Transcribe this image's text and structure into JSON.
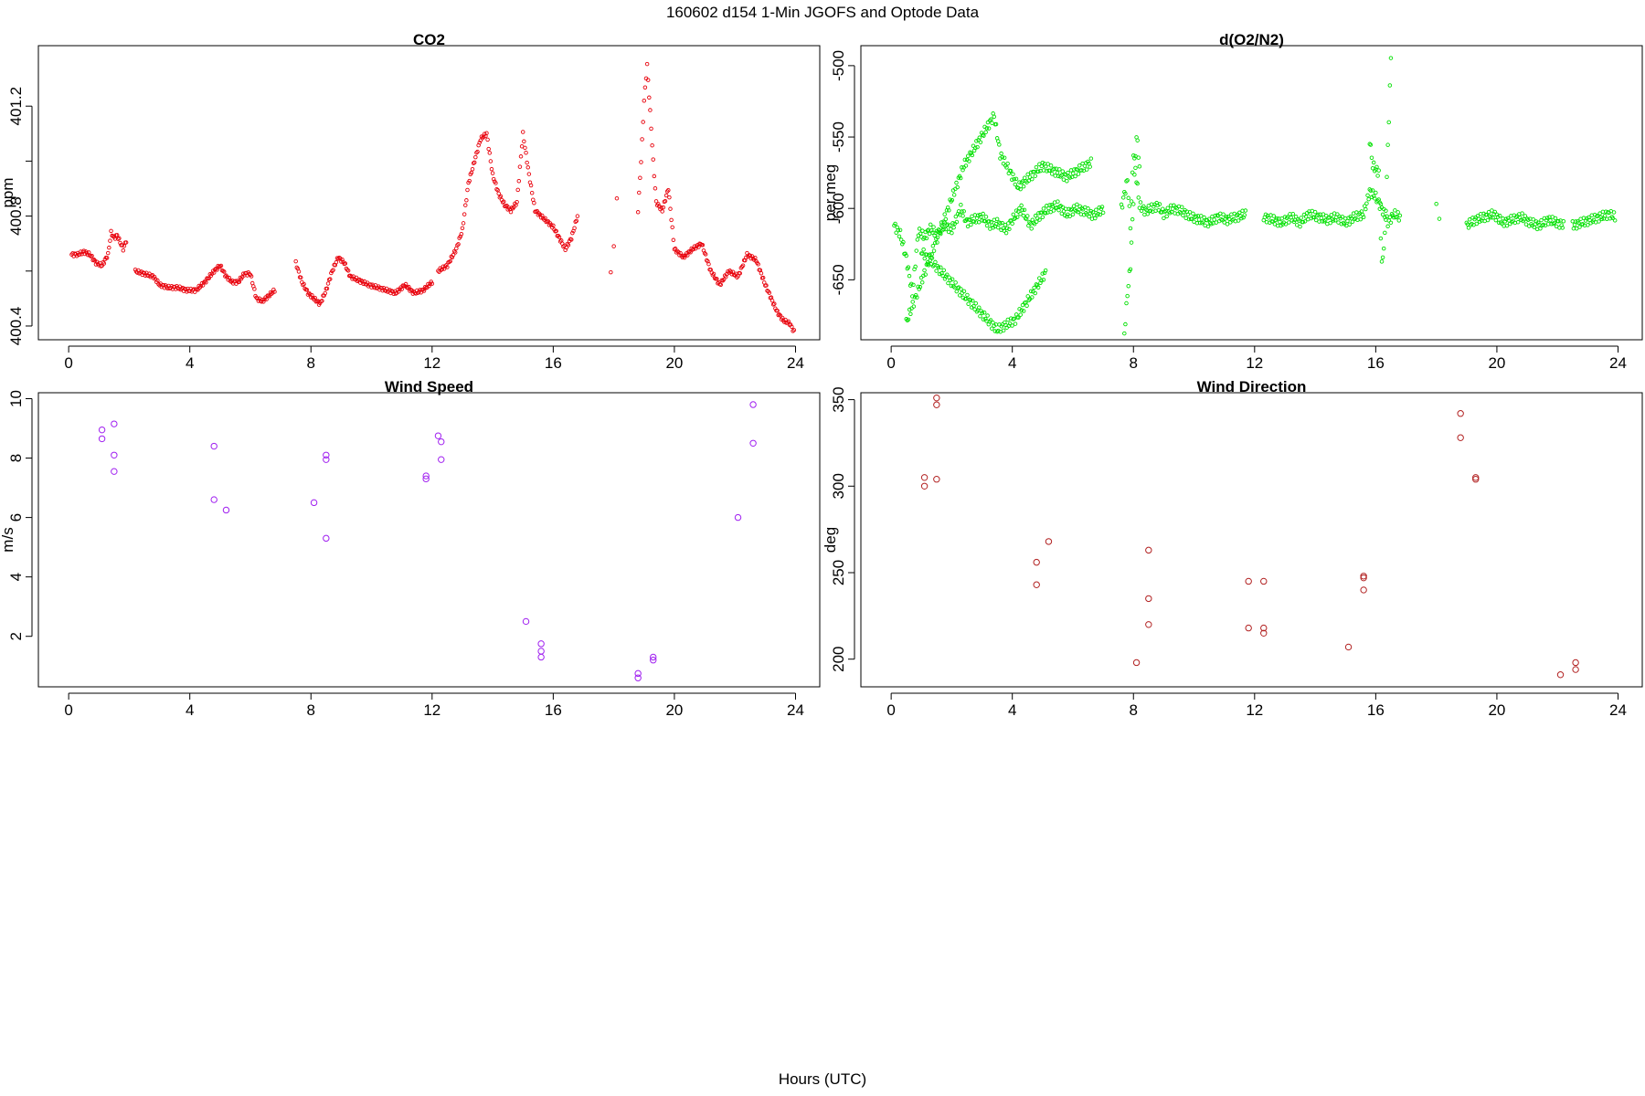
{
  "figure": {
    "title": "160602   d154   1-Min  JGOFS and Optode Data",
    "xlabel": "Hours (UTC)"
  },
  "chart_data": [
    {
      "type": "scatter",
      "title": "CO2",
      "xlabel": "",
      "ylabel": "ppm",
      "xlim": [
        -1,
        24.8
      ],
      "ylim": [
        400.35,
        401.42
      ],
      "xticks": [
        0,
        4,
        8,
        12,
        16,
        20,
        24
      ],
      "yticks": [
        400.4,
        400.6,
        400.8,
        401.0,
        401.2
      ],
      "ytick_labels": [
        "400.4",
        "",
        "400.8",
        "",
        "401.2"
      ],
      "color": "#e8000b",
      "marker": "small-circle",
      "series_note": "1-minute samples; values sampled along the visible trace",
      "segments": [
        {
          "x": [
            0.1,
            0.3,
            0.5,
            0.7,
            0.9,
            1.1,
            1.3,
            1.4,
            1.5,
            1.6,
            1.8,
            1.9
          ],
          "y": [
            400.66,
            400.66,
            400.67,
            400.66,
            400.63,
            400.62,
            400.66,
            400.74,
            400.72,
            400.73,
            400.68,
            400.71
          ]
        },
        {
          "x": [
            2.2,
            2.5,
            2.8,
            3.0,
            3.3,
            3.6,
            3.9,
            4.2,
            4.5,
            4.8,
            5.0,
            5.2,
            5.4,
            5.6,
            5.8,
            6.0,
            6.2,
            6.4,
            6.6,
            6.8
          ],
          "y": [
            400.6,
            400.59,
            400.58,
            400.55,
            400.54,
            400.54,
            400.53,
            400.53,
            400.56,
            400.6,
            400.62,
            400.58,
            400.56,
            400.56,
            400.59,
            400.59,
            400.5,
            400.49,
            400.51,
            400.53
          ]
        },
        {
          "x": [
            7.5,
            7.7,
            7.9,
            8.1,
            8.3,
            8.5,
            8.7,
            8.9,
            9.1,
            9.3,
            9.5,
            9.7,
            9.9,
            10.2,
            10.5,
            10.8,
            11.1,
            11.4,
            11.7,
            12.0
          ],
          "y": [
            400.63,
            400.56,
            400.52,
            400.5,
            400.48,
            400.53,
            400.6,
            400.65,
            400.63,
            400.58,
            400.57,
            400.56,
            400.55,
            400.54,
            400.53,
            400.52,
            400.55,
            400.52,
            400.53,
            400.56
          ]
        },
        {
          "x": [
            12.2,
            12.5,
            12.8,
            13.0,
            13.2,
            13.4,
            13.6,
            13.8,
            14.0,
            14.2,
            14.4,
            14.6,
            14.8,
            15.0,
            15.2,
            15.4,
            15.6,
            15.8,
            16.0,
            16.2,
            16.4,
            16.6,
            16.8
          ],
          "y": [
            400.6,
            400.62,
            400.68,
            400.75,
            400.92,
            401.0,
            401.08,
            401.1,
            400.95,
            400.88,
            400.84,
            400.82,
            400.85,
            401.1,
            400.95,
            400.82,
            400.8,
            400.78,
            400.76,
            400.72,
            400.68,
            400.72,
            400.8
          ]
        },
        {
          "x": [
            17.9,
            18.0,
            18.1
          ],
          "y": [
            400.6,
            400.69,
            400.86
          ]
        },
        {
          "x": [
            18.8,
            18.9,
            19.0,
            19.1,
            19.2,
            19.3,
            19.4,
            19.6,
            19.8,
            20.0,
            20.3,
            20.6,
            20.9,
            21.2,
            21.5,
            21.8,
            22.1,
            22.4,
            22.7,
            23.0,
            23.2,
            23.4,
            23.6,
            23.8,
            23.95
          ],
          "y": [
            400.82,
            401.0,
            401.22,
            401.35,
            401.18,
            401.0,
            400.85,
            400.82,
            400.9,
            400.68,
            400.65,
            400.68,
            400.7,
            400.6,
            400.55,
            400.6,
            400.58,
            400.66,
            400.64,
            400.55,
            400.5,
            400.45,
            400.42,
            400.41,
            400.38
          ]
        }
      ]
    },
    {
      "type": "scatter",
      "title": "d(O2/N2)",
      "xlabel": "",
      "ylabel": "per meg",
      "xlim": [
        -1,
        24.8
      ],
      "ylim": [
        -692,
        -486
      ],
      "xticks": [
        0,
        4,
        8,
        12,
        16,
        20,
        24
      ],
      "yticks": [
        -500,
        -550,
        -600,
        -650
      ],
      "ytick_labels": [
        "-500",
        "-550",
        "-600",
        "-650"
      ],
      "color": "#00e000",
      "marker": "small-circle",
      "series_note": "1-minute samples; values sampled along the visible trace",
      "segments": [
        {
          "x": [
            0.1,
            0.3,
            0.5,
            0.7,
            0.9,
            1.1,
            1.3,
            1.5,
            1.8,
            2.0,
            2.3,
            2.5,
            2.7,
            3.0,
            3.3,
            3.5,
            3.8,
            4.0,
            4.3,
            4.6,
            4.9,
            5.2,
            5.5,
            5.8,
            6.1,
            6.4,
            6.7,
            7.0
          ],
          "y": [
            -612,
            -618,
            -635,
            -660,
            -616,
            -620,
            -614,
            -618,
            -612,
            -615,
            -600,
            -610,
            -608,
            -606,
            -612,
            -610,
            -615,
            -608,
            -600,
            -612,
            -605,
            -600,
            -598,
            -604,
            -600,
            -602,
            -605,
            -600
          ]
        },
        {
          "x": [
            0.5,
            2.4,
            3.4,
            3.6,
            4.2,
            5.0,
            5.8,
            6.6,
            1.0,
            3.5,
            4.1,
            5.1
          ],
          "y": [
            -680,
            -570,
            -535,
            -562,
            -585,
            -570,
            -578,
            -568,
            -630,
            -685,
            -678,
            -645
          ]
        },
        {
          "x": [
            7.6,
            7.8,
            7.9,
            8.0,
            8.2,
            8.4,
            8.6,
            8.8,
            9.0,
            9.3,
            9.6,
            9.9,
            10.2,
            10.5,
            10.8,
            11.1,
            11.4,
            11.7
          ],
          "y": [
            -600,
            -580,
            -612,
            -560,
            -598,
            -602,
            -600,
            -598,
            -604,
            -600,
            -602,
            -606,
            -608,
            -610,
            -606,
            -608,
            -606,
            -604
          ]
        },
        {
          "x": [
            7.7,
            7.8,
            7.9,
            8.1,
            8.2
          ],
          "y": [
            -688,
            -660,
            -640,
            -548,
            -570
          ]
        },
        {
          "x": [
            12.3,
            12.6,
            12.9,
            13.2,
            13.5,
            13.8,
            14.1,
            14.4,
            14.7,
            15.0,
            15.3,
            15.6,
            15.8,
            16.0,
            16.2,
            16.4,
            16.6,
            16.8
          ],
          "y": [
            -606,
            -608,
            -610,
            -606,
            -610,
            -604,
            -606,
            -608,
            -606,
            -610,
            -606,
            -604,
            -588,
            -592,
            -600,
            -610,
            -604,
            -606
          ]
        },
        {
          "x": [
            15.8,
            15.9,
            16.1,
            16.2,
            16.3,
            16.5
          ],
          "y": [
            -552,
            -570,
            -575,
            -640,
            -620,
            -495
          ]
        },
        {
          "x": [
            18.0,
            18.1
          ],
          "y": [
            -596,
            -610
          ]
        },
        {
          "x": [
            19.0,
            19.3,
            19.6,
            19.9,
            20.2,
            20.5,
            20.8,
            21.1,
            21.4,
            21.7,
            22.0,
            22.2
          ],
          "y": [
            -612,
            -608,
            -606,
            -604,
            -610,
            -608,
            -606,
            -610,
            -612,
            -608,
            -610,
            -612
          ]
        },
        {
          "x": [
            22.5,
            22.8,
            23.1,
            23.4,
            23.7,
            23.9
          ],
          "y": [
            -612,
            -610,
            -608,
            -606,
            -604,
            -606
          ]
        }
      ]
    },
    {
      "type": "scatter",
      "title": "Wind Speed",
      "xlabel": "",
      "ylabel": "m/s",
      "xlim": [
        -1,
        24.8
      ],
      "ylim": [
        0.3,
        10.2
      ],
      "xticks": [
        0,
        4,
        8,
        12,
        16,
        20,
        24
      ],
      "yticks": [
        2,
        4,
        6,
        8,
        10
      ],
      "ytick_labels": [
        "2",
        "4",
        "6",
        "8",
        "10"
      ],
      "color": "#a020f0",
      "marker": "open-circle",
      "x": [
        1.1,
        1.1,
        1.5,
        1.5,
        1.5,
        4.8,
        4.8,
        5.2,
        8.1,
        8.5,
        8.5,
        8.5,
        11.8,
        11.8,
        12.2,
        12.3,
        12.3,
        15.1,
        15.6,
        15.6,
        15.6,
        18.8,
        18.8,
        19.3,
        19.3,
        22.1,
        22.6,
        22.6
      ],
      "y": [
        8.95,
        8.65,
        9.15,
        8.1,
        7.55,
        8.4,
        6.6,
        6.25,
        6.5,
        8.1,
        7.95,
        5.3,
        7.4,
        7.3,
        8.75,
        8.55,
        7.95,
        2.5,
        1.75,
        1.5,
        1.3,
        0.75,
        0.6,
        1.3,
        1.2,
        6.0,
        9.8,
        8.5
      ]
    },
    {
      "type": "scatter",
      "title": "Wind Direction",
      "xlabel": "",
      "ylabel": "deg",
      "xlim": [
        -1,
        24.8
      ],
      "ylim": [
        184,
        354
      ],
      "xticks": [
        0,
        4,
        8,
        12,
        16,
        20,
        24
      ],
      "yticks": [
        200,
        250,
        300,
        350
      ],
      "ytick_labels": [
        "200",
        "250",
        "300",
        "350"
      ],
      "color": "#b22222",
      "marker": "open-circle",
      "x": [
        1.1,
        1.1,
        1.5,
        1.5,
        1.5,
        4.8,
        4.8,
        5.2,
        8.1,
        8.5,
        8.5,
        8.5,
        11.8,
        11.8,
        12.3,
        12.3,
        12.3,
        15.1,
        15.6,
        15.6,
        15.6,
        18.8,
        18.8,
        19.3,
        19.3,
        22.1,
        22.6,
        22.6
      ],
      "y": [
        305,
        300,
        351,
        347,
        304,
        256,
        243,
        268,
        198,
        263,
        235,
        220,
        245,
        218,
        245,
        218,
        215,
        207,
        248,
        247,
        240,
        342,
        328,
        305,
        304,
        191,
        198,
        194
      ]
    }
  ]
}
